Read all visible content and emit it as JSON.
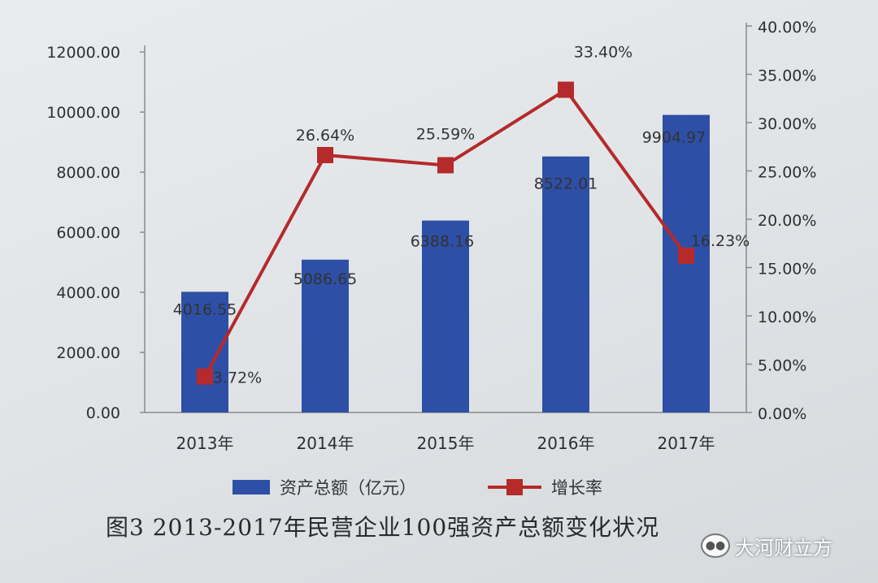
{
  "chart_data": {
    "type": "bar",
    "categories": [
      "2013年",
      "2014年",
      "2015年",
      "2016年",
      "2017年"
    ],
    "series": [
      {
        "name": "资产总额（亿元）",
        "type": "bar",
        "axis": "left",
        "values": [
          4016.55,
          5086.65,
          6388.16,
          8522.01,
          9904.97
        ],
        "labels": [
          "4016.55",
          "5086.65",
          "6388.16",
          "8522.01",
          "9904.97"
        ],
        "color": "#2e4fa6"
      },
      {
        "name": "增长率",
        "type": "line",
        "axis": "right",
        "values": [
          3.72,
          26.64,
          25.59,
          33.4,
          16.23
        ],
        "labels": [
          "3.72%",
          "26.64%",
          "25.59%",
          "33.40%",
          "16.23%"
        ],
        "color": "#b52a2a"
      }
    ],
    "y_left": {
      "min": 0,
      "max": 12000,
      "ticks": [
        "0.00",
        "2000.00",
        "4000.00",
        "6000.00",
        "8000.00",
        "10000.00",
        "12000.00"
      ]
    },
    "y_right": {
      "min": 0,
      "max": 40,
      "ticks": [
        "0.00%",
        "5.00%",
        "10.00%",
        "15.00%",
        "20.00%",
        "25.00%",
        "30.00%",
        "35.00%",
        "40.00%"
      ]
    },
    "legend": [
      "资产总额（亿元）",
      "增长率"
    ],
    "legend_position": "bottom",
    "grid": false
  },
  "caption": "图3 2013-2017年民营企业100强资产总额变化状况",
  "watermark": "大河财立方"
}
